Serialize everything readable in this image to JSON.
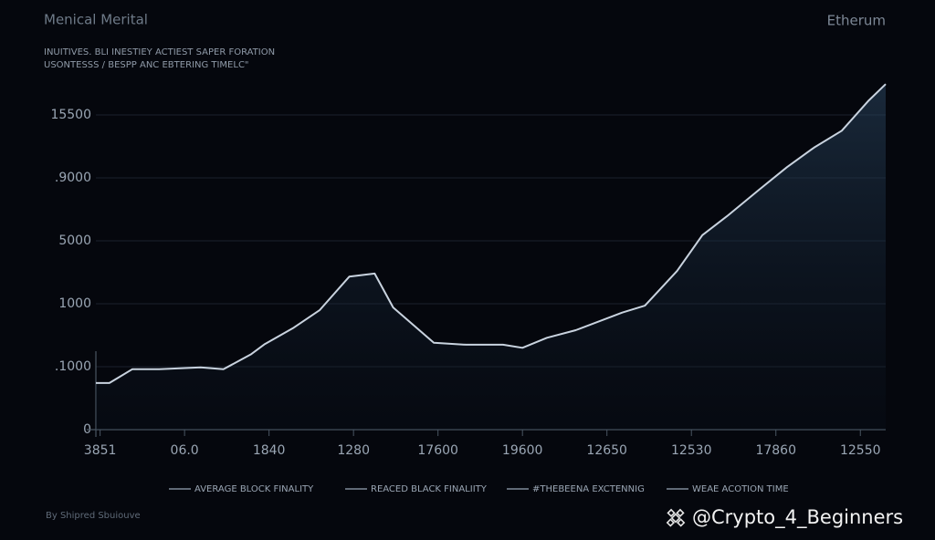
{
  "chart_data": {
    "type": "line",
    "title": "Menical Merital",
    "subtitle": [
      "INUITIVES. BLI INESTIEY ACTIEST SAPER FORATION",
      "USONTESSS / BESPP ANC EBTERING TIMELC\""
    ],
    "corner_label": "Etherum",
    "source": "By Shipred Sbuiouve",
    "watermark": "@Crypto_4_Beginners",
    "legend": [
      "AVERAGE BLOCK FINALITY",
      "REACED BLACK FINALIITY",
      "#THEBEENA EXCTENNIG",
      "WEAE ACOTION TIME"
    ],
    "xlim": [
      -0.05,
      9.3
    ],
    "xticks": [
      {
        "value": 0,
        "label": "3851"
      },
      {
        "value": 1,
        "label": "06.0"
      },
      {
        "value": 2,
        "label": "1840"
      },
      {
        "value": 3,
        "label": "1280"
      },
      {
        "value": 4,
        "label": "17600"
      },
      {
        "value": 5,
        "label": "19600"
      },
      {
        "value": 6,
        "label": "12650"
      },
      {
        "value": 7,
        "label": "12530"
      },
      {
        "value": 8,
        "label": "17860"
      },
      {
        "value": 9,
        "label": "12550"
      }
    ],
    "ylim": [
      0,
      5.5
    ],
    "yticks": [
      {
        "value": 0,
        "label": "0"
      },
      {
        "value": 1,
        "label": ".1000"
      },
      {
        "value": 2,
        "label": "1000"
      },
      {
        "value": 3,
        "label": "5000"
      },
      {
        "value": 4,
        "label": ".9000"
      },
      {
        "value": 5,
        "label": "15500"
      }
    ],
    "grid": true,
    "series": [
      {
        "color": "#c9d3df",
        "x": [
          -0.05,
          0.11,
          0.38,
          0.7,
          1.19,
          1.46,
          1.79,
          1.95,
          2.28,
          2.6,
          2.95,
          3.25,
          3.47,
          3.95,
          4.33,
          4.77,
          5.0,
          5.29,
          5.63,
          6.18,
          6.45,
          6.83,
          7.13,
          7.42,
          7.8,
          8.13,
          8.45,
          8.78,
          9.1,
          9.3
        ],
        "values": [
          0.74,
          0.74,
          0.96,
          0.96,
          0.99,
          0.96,
          1.2,
          1.36,
          1.61,
          1.9,
          2.43,
          2.48,
          1.94,
          1.38,
          1.35,
          1.35,
          1.3,
          1.46,
          1.58,
          1.86,
          1.97,
          2.52,
          3.09,
          3.39,
          3.81,
          4.17,
          4.48,
          4.75,
          5.23,
          5.49
        ]
      }
    ]
  }
}
